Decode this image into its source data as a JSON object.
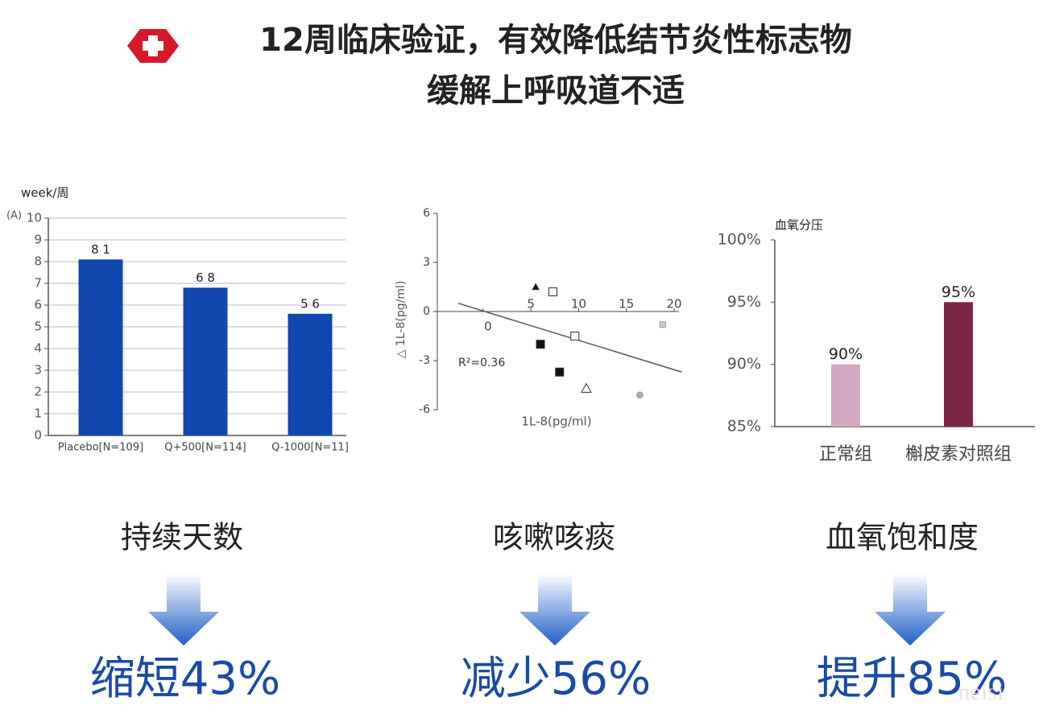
{
  "header": {
    "title_lines": [
      "12周临床验证，有效降低结节炎性标志物",
      "缓解上呼吸道不适"
    ]
  },
  "chart_data": [
    {
      "type": "bar",
      "y_label": "week/周",
      "panel_label": "(A)",
      "categories": [
        "Placebo[N=109]",
        "Q+500[N=114]",
        "Q-1000[N=11]"
      ],
      "values": [
        8.1,
        6.8,
        5.6
      ],
      "value_labels": [
        "8 1",
        "6 8",
        "5 6"
      ],
      "colors": [
        "#1048b0",
        "#1048b0",
        "#1048b0"
      ],
      "ylim": [
        0,
        10
      ],
      "yticks": [
        0,
        1,
        2,
        3,
        4,
        5,
        6,
        7,
        8,
        9,
        10
      ],
      "grid": true
    },
    {
      "type": "scatter",
      "y_label": "△ 1L-8(pg/ml)",
      "x_label": "1L-8(pg/ml)",
      "annotation": "R²=0.36",
      "x": [
        5.5,
        7.3,
        9.6,
        6.0,
        8.0,
        10.8,
        16.4,
        18.8
      ],
      "values": [
        1.5,
        1.2,
        -1.5,
        -2.0,
        -3.7,
        -4.7,
        -5.1,
        -0.8
      ],
      "markers": [
        "triangle-filled",
        "square-open",
        "square-open",
        "square-filled",
        "square-filled",
        "triangle-open",
        "circle-gray",
        "square-gray"
      ],
      "trendline": {
        "x": [
          -2.6,
          20.8
        ],
        "y": [
          0.5,
          -3.7
        ]
      },
      "xlim": [
        -4.8,
        20.5
      ],
      "xticks": [
        0,
        5,
        10,
        15,
        20
      ],
      "ylim": [
        -6,
        6
      ],
      "yticks": [
        6,
        3,
        0,
        -3,
        -6
      ]
    },
    {
      "type": "bar",
      "y_label": "血氧分压",
      "categories": [
        "正常组",
        "槲皮素对照组"
      ],
      "values": [
        90,
        95
      ],
      "value_labels": [
        "90%",
        "95%"
      ],
      "colors": [
        "#d4a8c0",
        "#7a2548"
      ],
      "ylim": [
        85,
        100
      ],
      "yticks": [
        {
          "value": 85,
          "label": "85%"
        },
        {
          "value": 90,
          "label": "90%"
        },
        {
          "value": 95,
          "label": "95%"
        },
        {
          "value": 100,
          "label": "100%"
        }
      ],
      "grid": false
    }
  ],
  "panels": [
    {
      "caption": "持续天数",
      "result": "缩短43%"
    },
    {
      "caption": "咳嗽咳痰",
      "result": "减少56%"
    },
    {
      "caption": "血氧饱和度",
      "result": "提升85%"
    }
  ],
  "watermark": "neisi"
}
